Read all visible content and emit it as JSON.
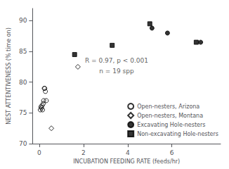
{
  "chart_data": {
    "type": "scatter",
    "xlabel": "INCUBATION FEEDING RATE (feeds/hr)",
    "ylabel": "NEST ATTENTIVENESS (% time on)",
    "xlim": [
      -0.3,
      8.2
    ],
    "ylim": [
      70,
      92
    ],
    "xticks": [
      0,
      2,
      4,
      6
    ],
    "yticks": [
      70,
      75,
      80,
      85,
      90
    ],
    "grid": false,
    "legend": "lower right",
    "series": [
      {
        "name": "Open-nesters, Arizona",
        "color": "black",
        "marker": "open_circle",
        "x": [
          0.05,
          0.08,
          0.1,
          0.13,
          0.15,
          0.18,
          0.2,
          0.23,
          0.25,
          0.28,
          0.32
        ],
        "values": [
          75.5,
          76.0,
          75.8,
          76.2,
          75.5,
          76.5,
          77.0,
          79.0,
          79.0,
          78.5,
          77.0
        ]
      },
      {
        "name": "Open-nesters, Montana",
        "color": "black",
        "marker": "open_diamond",
        "x": [
          0.55,
          1.75
        ],
        "values": [
          72.5,
          82.5
        ]
      },
      {
        "name": "Excavating Hole-nesters",
        "color": "black",
        "marker": "circle",
        "x": [
          5.1,
          5.8,
          7.3
        ],
        "values": [
          88.8,
          88.0,
          86.5
        ]
      },
      {
        "name": "Non-excavating Hole-nesters",
        "color": "black",
        "marker": "square",
        "x": [
          1.6,
          3.3,
          5.0,
          7.1
        ],
        "values": [
          84.5,
          86.0,
          89.5,
          86.5
        ]
      }
    ],
    "annotations": [
      {
        "text": "R = 0.97, p < 0.001",
        "x": 3.5,
        "y": 83.5
      },
      {
        "text": "n = 19 spp",
        "x": 3.5,
        "y": 81.8
      }
    ]
  }
}
